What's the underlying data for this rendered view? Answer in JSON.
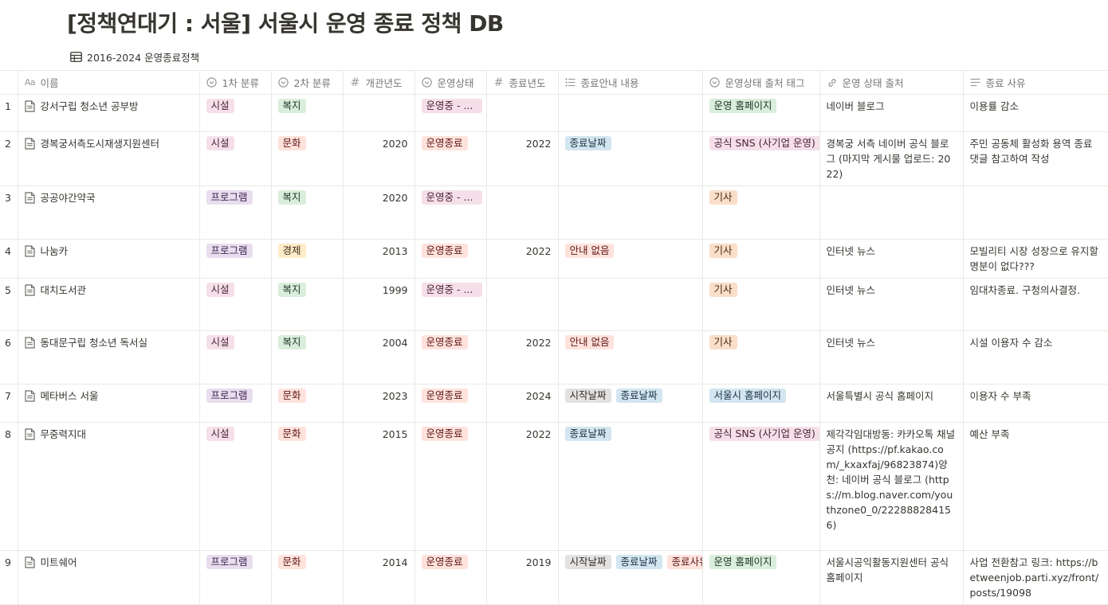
{
  "page": {
    "title": "[정책연대기 : 서울] 서울시 운영 종료 정책 DB",
    "view_name": "2016-2024 운영종료정책",
    "view_icon": "table-icon"
  },
  "columns": [
    {
      "label": "이름",
      "icon": "text-aa-icon"
    },
    {
      "label": "1차 분류",
      "icon": "select-icon"
    },
    {
      "label": "2차 분류",
      "icon": "select-icon"
    },
    {
      "label": "개관년도",
      "icon": "number-icon"
    },
    {
      "label": "운영상태",
      "icon": "select-icon"
    },
    {
      "label": "종료년도",
      "icon": "number-icon"
    },
    {
      "label": "종료안내 내용",
      "icon": "multi-select-icon"
    },
    {
      "label": "운영상태 출처 태그",
      "icon": "select-icon"
    },
    {
      "label": "운영 상태 출처",
      "icon": "link-icon"
    },
    {
      "label": "종료 사유",
      "icon": "text-lines-icon"
    }
  ],
  "colors": {
    "pink": "#f5e0e9",
    "purple": "#e8deee",
    "green": "#dbeddb",
    "orange": "#fadec9",
    "yellow": "#fdecc8",
    "red": "#ffe2dd",
    "blue": "#d3e5ef",
    "gray": "#e3e2e0",
    "border": "#e9e9e7",
    "header_text": "#787774"
  },
  "rows": [
    {
      "index": "1",
      "name": "강서구립 청소년 공부방",
      "cat1": {
        "label": "시설",
        "color": "pink"
      },
      "cat2": {
        "label": "복지",
        "color": "green"
      },
      "open_year": "",
      "status": {
        "label": "운영중 - ...",
        "color": "pink"
      },
      "end_year": "",
      "notice": [],
      "source_tag": {
        "label": "운영 홈페이지",
        "color": "green"
      },
      "source": "네이버 블로그",
      "reason": "이용률 감소"
    },
    {
      "index": "2",
      "name": "경복궁서측도시재생지원센터",
      "cat1": {
        "label": "시설",
        "color": "pink"
      },
      "cat2": {
        "label": "문화",
        "color": "red"
      },
      "open_year": "2020",
      "status": {
        "label": "운영종료",
        "color": "red"
      },
      "end_year": "2022",
      "notice": [
        {
          "label": "종료날짜",
          "color": "blue"
        }
      ],
      "source_tag": {
        "label": "공식 SNS (사기업 운영)",
        "color": "pink"
      },
      "source": "경복궁 서측 네이버 공식 블로그 (마지막 게시물 업로드: 2022)",
      "reason": "주민 공동체 활성화 용역 종료 댓글 참고하여 작성"
    },
    {
      "index": "3",
      "name": "공공야간약국",
      "cat1": {
        "label": "프로그램",
        "color": "purple"
      },
      "cat2": {
        "label": "복지",
        "color": "green"
      },
      "open_year": "2020",
      "status": {
        "label": "운영중 - ...",
        "color": "pink"
      },
      "end_year": "",
      "notice": [],
      "source_tag": {
        "label": "기사",
        "color": "orange"
      },
      "source": "",
      "reason": ""
    },
    {
      "index": "4",
      "name": "나눔카",
      "cat1": {
        "label": "프로그램",
        "color": "purple"
      },
      "cat2": {
        "label": "경제",
        "color": "yellow"
      },
      "open_year": "2013",
      "status": {
        "label": "운영종료",
        "color": "red"
      },
      "end_year": "2022",
      "notice": [
        {
          "label": "안내 없음",
          "color": "red"
        }
      ],
      "source_tag": {
        "label": "기사",
        "color": "orange"
      },
      "source": "인터넷 뉴스",
      "reason": "모빌리티 시장 성장으로 유지할 명분이 없다???"
    },
    {
      "index": "5",
      "name": "대치도서관",
      "cat1": {
        "label": "시설",
        "color": "pink"
      },
      "cat2": {
        "label": "복지",
        "color": "green"
      },
      "open_year": "1999",
      "status": {
        "label": "운영중 - ...",
        "color": "pink"
      },
      "end_year": "",
      "notice": [],
      "source_tag": {
        "label": "기사",
        "color": "orange"
      },
      "source": "인터넷 뉴스",
      "reason": "임대차종료. 구청의사결정."
    },
    {
      "index": "6",
      "name": "동대문구립 청소년 독서실",
      "cat1": {
        "label": "시설",
        "color": "pink"
      },
      "cat2": {
        "label": "복지",
        "color": "green"
      },
      "open_year": "2004",
      "status": {
        "label": "운영종료",
        "color": "red"
      },
      "end_year": "2022",
      "notice": [
        {
          "label": "안내 없음",
          "color": "red"
        }
      ],
      "source_tag": {
        "label": "기사",
        "color": "orange"
      },
      "source": "인터넷 뉴스",
      "reason": "시설 이용자 수 감소"
    },
    {
      "index": "7",
      "name": "메타버스 서울",
      "cat1": {
        "label": "프로그램",
        "color": "purple"
      },
      "cat2": {
        "label": "문화",
        "color": "red"
      },
      "open_year": "2023",
      "status": {
        "label": "운영종료",
        "color": "red"
      },
      "end_year": "2024",
      "notice": [
        {
          "label": "시작날짜",
          "color": "gray"
        },
        {
          "label": "종료날짜",
          "color": "blue"
        }
      ],
      "source_tag": {
        "label": "서울시 홈페이지",
        "color": "blue"
      },
      "source": "서울특별시 공식 홈페이지",
      "reason": "이용자 수 부족"
    },
    {
      "index": "8",
      "name": "무중력지대",
      "cat1": {
        "label": "시설",
        "color": "pink"
      },
      "cat2": {
        "label": "문화",
        "color": "red"
      },
      "open_year": "2015",
      "status": {
        "label": "운영종료",
        "color": "red"
      },
      "end_year": "2022",
      "notice": [
        {
          "label": "종료날짜",
          "color": "blue"
        }
      ],
      "source_tag": {
        "label": "공식 SNS (사기업 운영)",
        "color": "pink"
      },
      "source": "제각각임대방동: 카카오톡 채널 공지 (https://pf.kakao.com/_kxaxfaj/96823874)양천: 네이버 공식 블로그 (https://m.blog.naver.com/youthzone0_0/222888284156)",
      "reason": "예산 부족"
    },
    {
      "index": "9",
      "name": "미트쉐어",
      "cat1": {
        "label": "프로그램",
        "color": "purple"
      },
      "cat2": {
        "label": "문화",
        "color": "red"
      },
      "open_year": "2014",
      "status": {
        "label": "운영종료",
        "color": "red"
      },
      "end_year": "2019",
      "notice": [
        {
          "label": "시작날짜",
          "color": "gray"
        },
        {
          "label": "종료날짜",
          "color": "blue"
        },
        {
          "label": "종료사유",
          "color": "red"
        }
      ],
      "source_tag": {
        "label": "운영 홈페이지",
        "color": "green"
      },
      "source": "서울시공익활동지원센터 공식 홈페이지",
      "reason": "사업 전환참고 링크: https://betweenjob.parti.xyz/front/posts/19098"
    }
  ]
}
